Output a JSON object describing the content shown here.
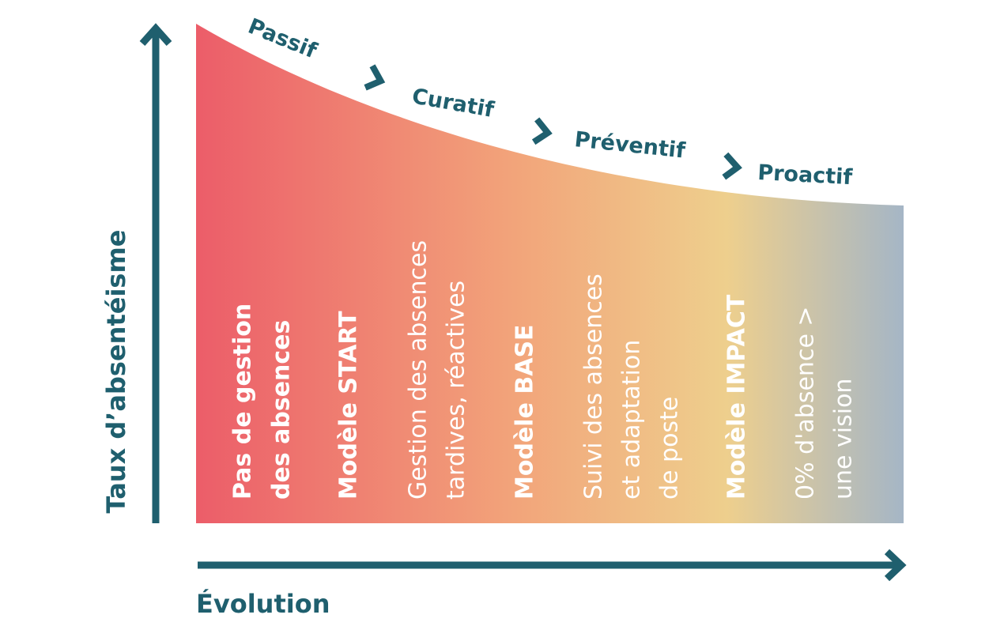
{
  "y_axis_label": "Taux d’absentéisme",
  "x_axis_label": "Évolution",
  "stages": [
    "Passif",
    "Curatif",
    "Préventif",
    "Proactif"
  ],
  "columns": [
    {
      "lines": [
        "Pas de gestion",
        "des absences"
      ]
    },
    {
      "lines": [
        "Modèle START"
      ]
    },
    {
      "lines": [
        "Gestion des absences",
        "tardives, réactives"
      ]
    },
    {
      "lines": [
        "Modèle BASE"
      ]
    },
    {
      "lines": [
        "Suivi des absences",
        "et adaptation",
        "de poste"
      ]
    },
    {
      "lines": [
        "Modèle IMPACT"
      ]
    },
    {
      "lines": [
        "0% d'absence >",
        "une vision"
      ]
    }
  ]
}
